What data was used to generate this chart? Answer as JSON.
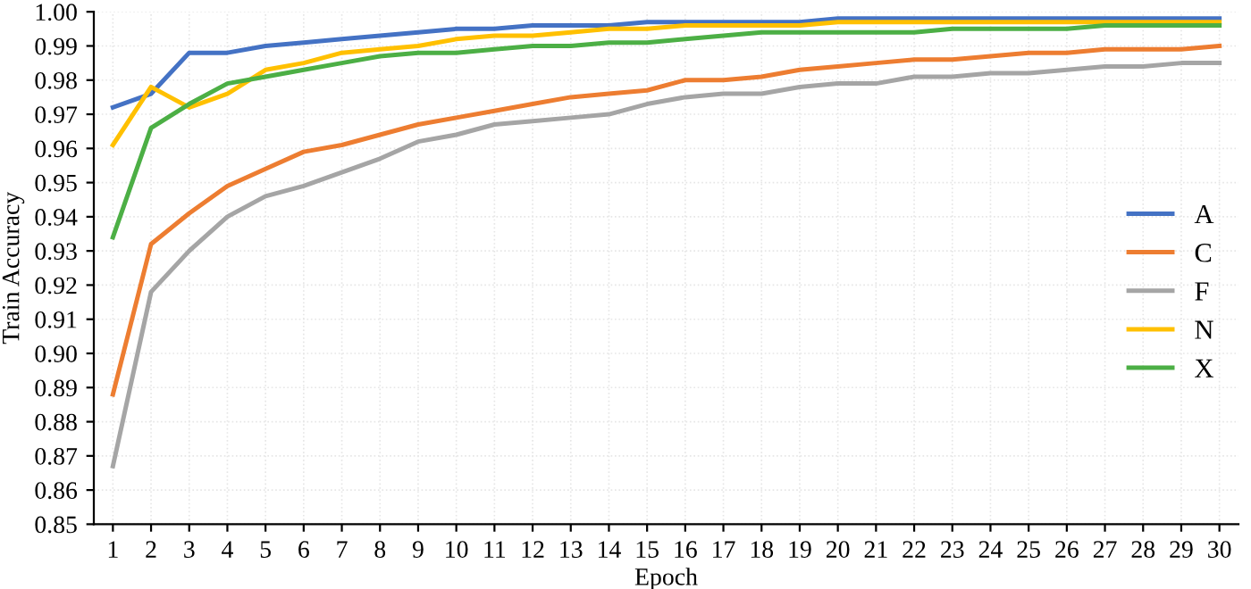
{
  "chart_data": {
    "type": "line",
    "xlabel": "Epoch",
    "ylabel": "Train Accuracy",
    "x": [
      1,
      2,
      3,
      4,
      5,
      6,
      7,
      8,
      9,
      10,
      11,
      12,
      13,
      14,
      15,
      16,
      17,
      18,
      19,
      20,
      21,
      22,
      23,
      24,
      25,
      26,
      27,
      28,
      29,
      30
    ],
    "xlim": [
      0.5,
      30.5
    ],
    "xticks": [
      1,
      2,
      3,
      4,
      5,
      6,
      7,
      8,
      9,
      10,
      11,
      12,
      13,
      14,
      15,
      16,
      17,
      18,
      19,
      20,
      21,
      22,
      23,
      24,
      25,
      26,
      27,
      28,
      29,
      30
    ],
    "ylim": [
      0.85,
      1.0
    ],
    "yticks": [
      {
        "value": 0.85,
        "label": "0.85"
      },
      {
        "value": 0.86,
        "label": "0.86"
      },
      {
        "value": 0.87,
        "label": "0.87"
      },
      {
        "value": 0.88,
        "label": "0.88"
      },
      {
        "value": 0.89,
        "label": "0.89"
      },
      {
        "value": 0.9,
        "label": "0.90"
      },
      {
        "value": 0.91,
        "label": "0.91"
      },
      {
        "value": 0.92,
        "label": "0.92"
      },
      {
        "value": 0.93,
        "label": "0.93"
      },
      {
        "value": 0.94,
        "label": "0.94"
      },
      {
        "value": 0.95,
        "label": "0.95"
      },
      {
        "value": 0.96,
        "label": "0.96"
      },
      {
        "value": 0.97,
        "label": "0.97"
      },
      {
        "value": 0.98,
        "label": "0.98"
      },
      {
        "value": 0.99,
        "label": "0.99"
      },
      {
        "value": 1.0,
        "label": "1.00"
      }
    ],
    "grid": true,
    "legend": "right",
    "marker": "none",
    "line_style": "solid",
    "series": [
      {
        "name": "A",
        "color": "#4472c4",
        "values": [
          0.972,
          0.976,
          0.988,
          0.988,
          0.99,
          0.991,
          0.992,
          0.993,
          0.994,
          0.995,
          0.995,
          0.996,
          0.996,
          0.996,
          0.997,
          0.997,
          0.997,
          0.997,
          0.997,
          0.998,
          0.998,
          0.998,
          0.998,
          0.998,
          0.998,
          0.998,
          0.998,
          0.998,
          0.998,
          0.998
        ]
      },
      {
        "name": "C",
        "color": "#ed7d31",
        "values": [
          0.888,
          0.932,
          0.941,
          0.949,
          0.954,
          0.959,
          0.961,
          0.964,
          0.967,
          0.969,
          0.971,
          0.973,
          0.975,
          0.976,
          0.977,
          0.98,
          0.98,
          0.981,
          0.983,
          0.984,
          0.985,
          0.986,
          0.986,
          0.987,
          0.988,
          0.988,
          0.989,
          0.989,
          0.989,
          0.99
        ]
      },
      {
        "name": "F",
        "color": "#a5a5a5",
        "values": [
          0.867,
          0.918,
          0.93,
          0.94,
          0.946,
          0.949,
          0.953,
          0.957,
          0.962,
          0.964,
          0.967,
          0.968,
          0.969,
          0.97,
          0.973,
          0.975,
          0.976,
          0.976,
          0.978,
          0.979,
          0.979,
          0.981,
          0.981,
          0.982,
          0.982,
          0.983,
          0.984,
          0.984,
          0.985,
          0.985
        ]
      },
      {
        "name": "N",
        "color": "#ffc000",
        "values": [
          0.961,
          0.978,
          0.972,
          0.976,
          0.983,
          0.985,
          0.988,
          0.989,
          0.99,
          0.992,
          0.993,
          0.993,
          0.994,
          0.995,
          0.995,
          0.996,
          0.996,
          0.996,
          0.996,
          0.997,
          0.997,
          0.997,
          0.997,
          0.997,
          0.997,
          0.997,
          0.997,
          0.997,
          0.997,
          0.997
        ]
      },
      {
        "name": "X",
        "color": "#4caf45",
        "values": [
          0.934,
          0.966,
          0.973,
          0.979,
          0.981,
          0.983,
          0.985,
          0.987,
          0.988,
          0.988,
          0.989,
          0.99,
          0.99,
          0.991,
          0.991,
          0.992,
          0.993,
          0.994,
          0.994,
          0.994,
          0.994,
          0.994,
          0.995,
          0.995,
          0.995,
          0.995,
          0.996,
          0.996,
          0.996,
          0.996
        ]
      }
    ]
  }
}
